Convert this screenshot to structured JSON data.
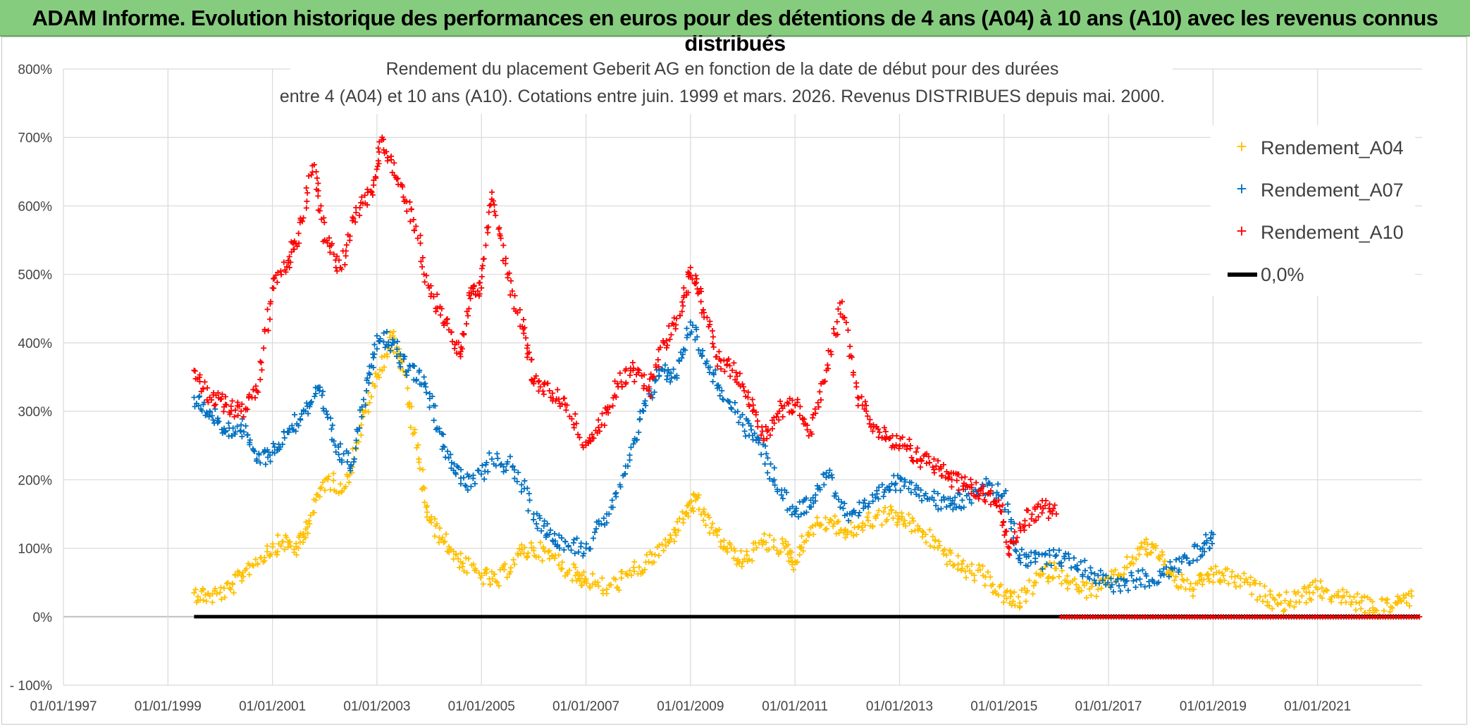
{
  "header": {
    "banner": "ADAM Informe. Evolution historique des performances en euros pour des détentions de 4 ans (A04) à 10 ans (A10) avec les revenus connus distribués"
  },
  "colors": {
    "A04": "#ffc000",
    "A07": "#0070c0",
    "A10": "#ff0000",
    "zero": "#000000",
    "banner": "#86cc7e"
  },
  "chart_data": {
    "type": "scatter",
    "title_line1": "Rendement du placement Geberit AG en fonction de la date de début pour des durées",
    "title_line2": "entre 4 (A04) et 10 ans (A10). Cotations entre juin. 1999 et mars. 2026. Revenus DISTRIBUES depuis mai. 2000.",
    "ylim": [
      -100,
      800
    ],
    "xlim": [
      1997.0,
      2023.0
    ],
    "y_ticks": [
      -100,
      0,
      100,
      200,
      300,
      400,
      500,
      600,
      700,
      800
    ],
    "y_tick_labels": [
      "- 100%",
      "0%",
      "100%",
      "200%",
      "300%",
      "400%",
      "500%",
      "600%",
      "700%",
      "800%"
    ],
    "x_ticks": [
      1997,
      1999,
      2001,
      2003,
      2005,
      2007,
      2009,
      2011,
      2013,
      2015,
      2017,
      2019,
      2021
    ],
    "x_tick_labels": [
      "01/01/1997",
      "01/01/1999",
      "01/01/2001",
      "01/01/2003",
      "01/01/2005",
      "01/01/2007",
      "01/01/2009",
      "01/01/2011",
      "01/01/2013",
      "01/01/2015",
      "01/01/2017",
      "01/01/2019",
      "01/01/2021"
    ],
    "legend": {
      "position": "top-right",
      "entries": [
        "Rendement_A04",
        "Rendement_A07",
        "Rendement_A10",
        "0,0%"
      ]
    },
    "series": [
      {
        "name": "Rendement_A04",
        "color": "#ffc000",
        "x": [
          1999.5,
          1999.8,
          2000.2,
          2000.5,
          2000.9,
          2001.2,
          2001.5,
          2001.7,
          2002.0,
          2002.4,
          2002.7,
          2003.0,
          2003.3,
          2003.5,
          2003.8,
          2004.0,
          2004.3,
          2004.6,
          2005.0,
          2005.3,
          2005.7,
          2006.0,
          2006.4,
          2006.8,
          2007.0,
          2007.4,
          2007.8,
          2008.2,
          2008.6,
          2008.9,
          2009.1,
          2009.4,
          2009.7,
          2010.0,
          2010.4,
          2010.8,
          2011.0,
          2011.3,
          2011.7,
          2012.0,
          2012.4,
          2012.8,
          2013.1,
          2013.5,
          2013.9,
          2014.2,
          2014.6,
          2015.0,
          2015.3,
          2015.7,
          2016.0,
          2016.4,
          2016.8,
          2017.2,
          2017.6,
          2017.9,
          2018.2,
          2018.6,
          2018.9,
          2019.2,
          2019.6,
          2020.0,
          2020.3,
          2020.7,
          2021.0,
          2021.4,
          2021.8,
          2022.1,
          2022.5,
          2022.8
        ],
        "y": [
          35,
          30,
          40,
          70,
          95,
          110,
          100,
          140,
          200,
          190,
          280,
          350,
          410,
          360,
          230,
          140,
          110,
          80,
          60,
          50,
          90,
          100,
          85,
          60,
          55,
          40,
          60,
          80,
          110,
          150,
          170,
          130,
          100,
          80,
          110,
          100,
          80,
          130,
          140,
          120,
          140,
          150,
          140,
          120,
          90,
          70,
          60,
          30,
          20,
          60,
          70,
          40,
          40,
          60,
          100,
          100,
          60,
          40,
          60,
          60,
          50,
          30,
          20,
          30,
          40,
          30,
          20,
          10,
          20,
          30
        ]
      },
      {
        "name": "Rendement_A07",
        "color": "#0070c0",
        "x": [
          1999.5,
          1999.8,
          2000.1,
          2000.4,
          2000.7,
          2001.0,
          2001.3,
          2001.6,
          2001.9,
          2002.2,
          2002.5,
          2002.8,
          2003.0,
          2003.3,
          2003.6,
          2003.9,
          2004.2,
          2004.5,
          2004.8,
          2005.2,
          2005.6,
          2006.0,
          2006.3,
          2006.6,
          2007.0,
          2007.4,
          2007.8,
          2008.1,
          2008.4,
          2008.7,
          2009.0,
          2009.3,
          2009.6,
          2010.0,
          2010.3,
          2010.6,
          2011.0,
          2011.3,
          2011.6,
          2012.0,
          2012.4,
          2012.8,
          2013.1,
          2013.5,
          2013.9,
          2014.2,
          2014.6,
          2015.0,
          2015.3,
          2015.6,
          2016.0,
          2016.4,
          2016.8,
          2017.2,
          2017.6,
          2018.0,
          2018.4,
          2018.8,
          2019.0
        ],
        "y": [
          320,
          300,
          270,
          280,
          230,
          240,
          270,
          300,
          330,
          250,
          220,
          330,
          410,
          400,
          360,
          350,
          270,
          210,
          190,
          230,
          220,
          150,
          120,
          110,
          100,
          150,
          220,
          300,
          360,
          350,
          430,
          370,
          330,
          280,
          260,
          200,
          150,
          170,
          210,
          150,
          160,
          190,
          200,
          180,
          160,
          170,
          190,
          180,
          90,
          80,
          90,
          75,
          60,
          45,
          55,
          60,
          80,
          100,
          120
        ]
      },
      {
        "name": "Rendement_A10",
        "color": "#ff0000",
        "x": [
          1999.5,
          1999.8,
          2000.1,
          2000.4,
          2000.7,
          2001.0,
          2001.3,
          2001.5,
          2001.8,
          2002.0,
          2002.3,
          2002.6,
          2002.9,
          2003.1,
          2003.4,
          2003.7,
          2004.0,
          2004.3,
          2004.6,
          2004.8,
          2005.0,
          2005.2,
          2005.5,
          2005.8,
          2006.0,
          2006.3,
          2006.6,
          2007.0,
          2007.3,
          2007.6,
          2007.9,
          2008.2,
          2008.5,
          2008.8,
          2009.0,
          2009.2,
          2009.5,
          2009.8,
          2010.1,
          2010.4,
          2010.7,
          2011.0,
          2011.3,
          2011.6,
          2011.9,
          2012.2,
          2012.5,
          2012.8,
          2013.1,
          2013.4,
          2013.7,
          2014.0,
          2014.3,
          2014.6,
          2014.9,
          2015.1,
          2015.4,
          2015.7,
          2016.0
        ],
        "y": [
          360,
          320,
          310,
          300,
          330,
          480,
          520,
          560,
          660,
          550,
          510,
          590,
          620,
          700,
          640,
          580,
          480,
          430,
          380,
          480,
          480,
          620,
          500,
          420,
          340,
          330,
          310,
          250,
          280,
          340,
          360,
          330,
          400,
          440,
          510,
          460,
          380,
          360,
          320,
          260,
          300,
          310,
          270,
          360,
          460,
          320,
          280,
          260,
          250,
          230,
          220,
          200,
          190,
          180,
          170,
          100,
          140,
          160,
          150
        ]
      },
      {
        "name": "0,0%",
        "color": "#000000",
        "x": [
          1999.5,
          2022.95
        ],
        "y": [
          0,
          0
        ]
      }
    ]
  }
}
